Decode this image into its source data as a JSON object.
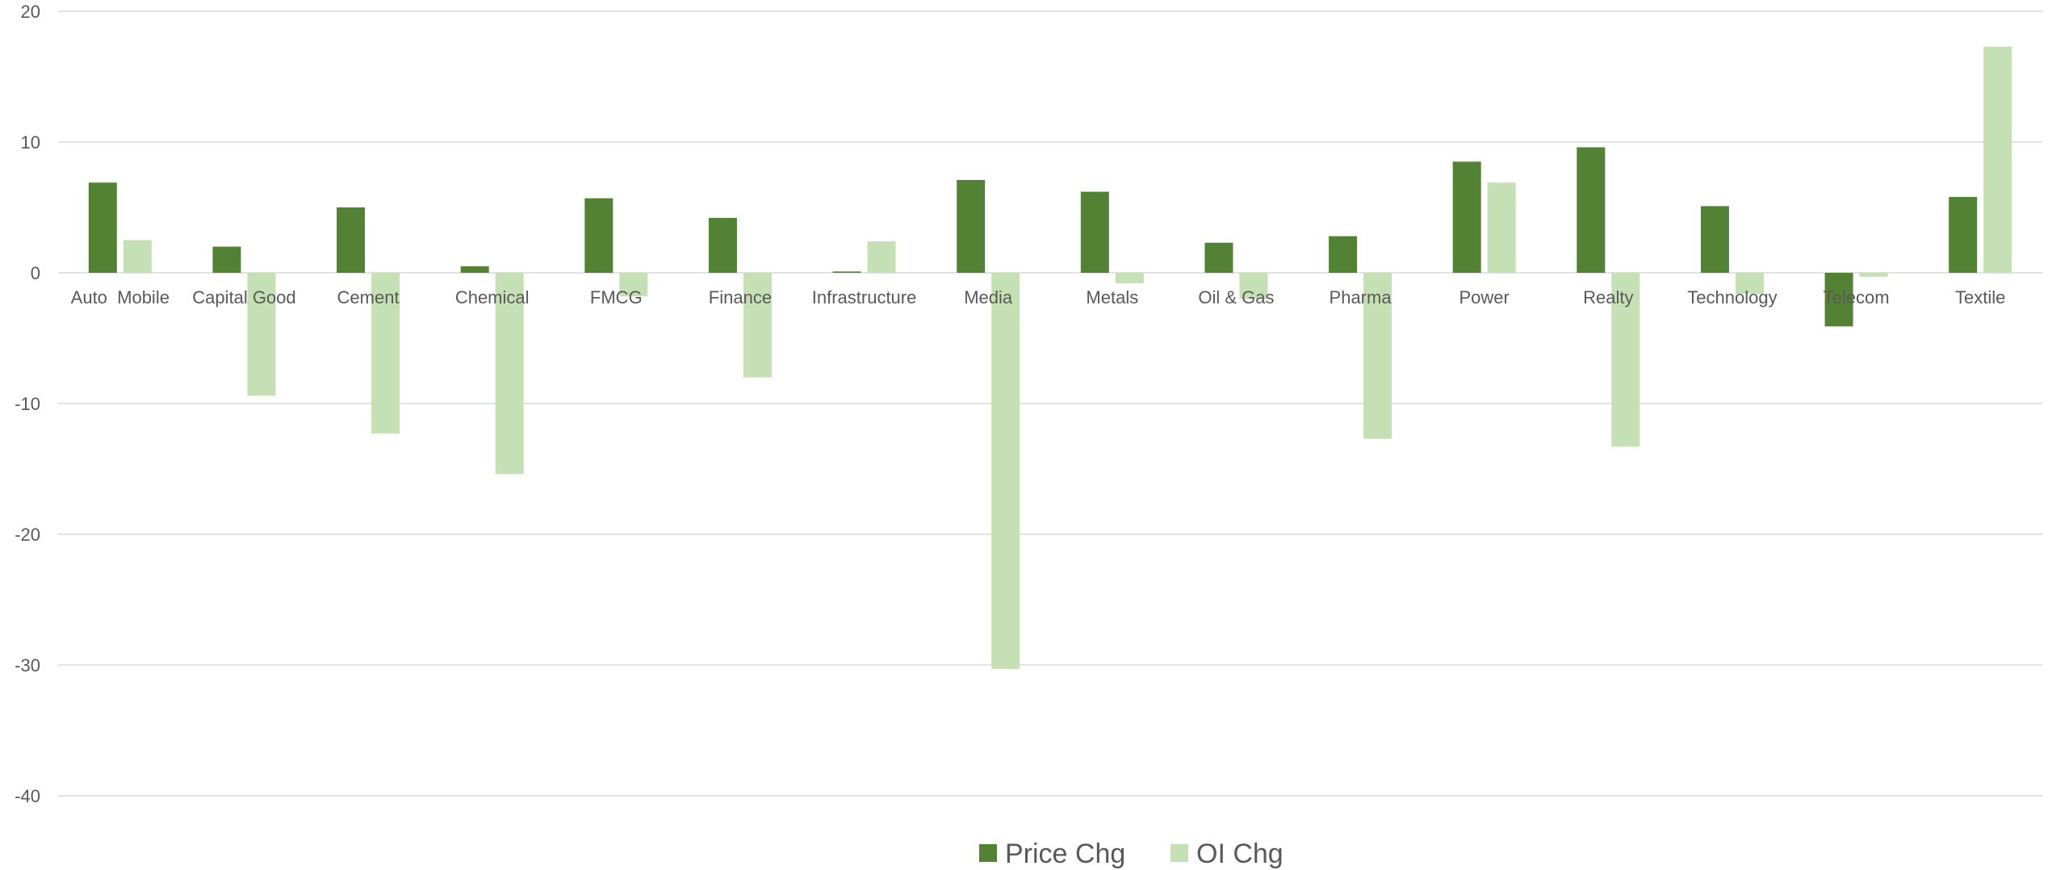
{
  "chart_data": {
    "type": "bar",
    "categories": [
      "Auto  Mobile",
      "Capital Good",
      "Cement",
      "Chemical",
      "FMCG",
      "Finance",
      "Infrastructure",
      "Media",
      "Metals",
      "Oil & Gas",
      "Pharma",
      "Power",
      "Realty",
      "Technology",
      "Telecom",
      "Textile"
    ],
    "series": [
      {
        "name": "Price Chg",
        "color": "#548235",
        "values": [
          6.9,
          2.0,
          5.0,
          0.5,
          5.7,
          4.2,
          0.1,
          7.1,
          6.2,
          2.3,
          2.8,
          8.5,
          9.6,
          5.1,
          -4.1,
          5.8
        ]
      },
      {
        "name": "OI Chg",
        "color": "#c5e0b4",
        "values": [
          2.5,
          -9.4,
          -12.3,
          -15.4,
          -1.8,
          -8.0,
          2.4,
          -30.3,
          -0.8,
          -2.0,
          -12.7,
          6.9,
          -13.3,
          -1.6,
          -0.3,
          17.3
        ]
      }
    ],
    "yticks": [
      20,
      10,
      0,
      -10,
      -20,
      -30,
      -40
    ],
    "ylim": [
      -40,
      20
    ],
    "title": "",
    "xlabel": "",
    "ylabel": "",
    "grid": true,
    "legend_position": "bottom"
  }
}
